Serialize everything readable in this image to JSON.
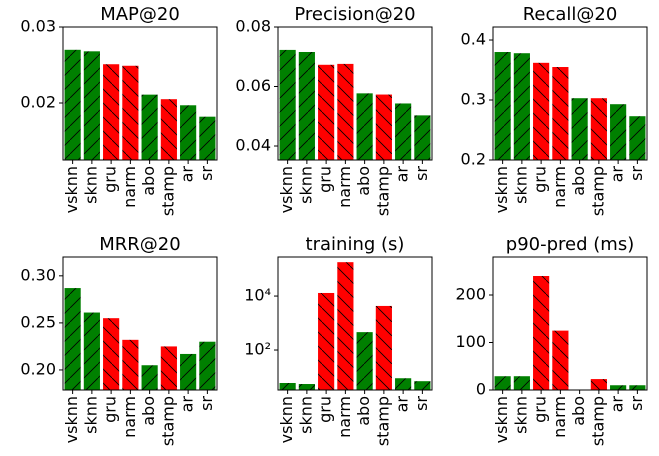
{
  "chart_data": [
    {
      "type": "bar",
      "title": "MAP@20",
      "categories": [
        "vsknn",
        "sknn",
        "gru",
        "narm",
        "abo",
        "stamp",
        "ar",
        "sr"
      ],
      "values": [
        0.027,
        0.0268,
        0.0251,
        0.0249,
        0.0211,
        0.0205,
        0.0197,
        0.0182
      ],
      "colors": [
        "#008000",
        "#008000",
        "#ff0000",
        "#ff0000",
        "#008000",
        "#ff0000",
        "#008000",
        "#008000"
      ],
      "ylim": [
        0.0125,
        0.03
      ],
      "yticks": [
        0.02,
        0.03
      ]
    },
    {
      "type": "bar",
      "title": "Precision@20",
      "categories": [
        "vsknn",
        "sknn",
        "gru",
        "narm",
        "abo",
        "stamp",
        "ar",
        "sr"
      ],
      "values": [
        0.0723,
        0.0716,
        0.0673,
        0.0676,
        0.0577,
        0.0573,
        0.0543,
        0.0503
      ],
      "colors": [
        "#008000",
        "#008000",
        "#ff0000",
        "#ff0000",
        "#008000",
        "#ff0000",
        "#008000",
        "#008000"
      ],
      "ylim": [
        0.0353,
        0.08
      ],
      "yticks": [
        0.04,
        0.06,
        0.08
      ]
    },
    {
      "type": "bar",
      "title": "Recall@20",
      "categories": [
        "vsknn",
        "sknn",
        "gru",
        "narm",
        "abo",
        "stamp",
        "ar",
        "sr"
      ],
      "values": [
        0.38,
        0.378,
        0.362,
        0.355,
        0.303,
        0.303,
        0.293,
        0.273
      ],
      "colors": [
        "#008000",
        "#008000",
        "#ff0000",
        "#ff0000",
        "#008000",
        "#ff0000",
        "#008000",
        "#008000"
      ],
      "ylim": [
        0.2,
        0.4217
      ],
      "yticks": [
        0.2,
        0.3,
        0.4
      ]
    },
    {
      "type": "bar",
      "title": "MRR@20",
      "categories": [
        "vsknn",
        "sknn",
        "gru",
        "narm",
        "abo",
        "stamp",
        "ar",
        "sr"
      ],
      "values": [
        0.287,
        0.261,
        0.255,
        0.232,
        0.205,
        0.225,
        0.217,
        0.23
      ],
      "colors": [
        "#008000",
        "#008000",
        "#ff0000",
        "#ff0000",
        "#008000",
        "#ff0000",
        "#008000",
        "#008000"
      ],
      "ylim": [
        0.1787,
        0.32
      ],
      "yticks": [
        {
          "value": 0.2,
          "label": "0.20"
        },
        {
          "value": 0.25,
          "label": "0.25"
        },
        {
          "value": 0.3,
          "label": "0.30"
        }
      ]
    },
    {
      "type": "bar",
      "title": "training (s)",
      "ylog": true,
      "categories": [
        "vsknn",
        "sknn",
        "gru",
        "narm",
        "abo",
        "stamp",
        "ar",
        "sr"
      ],
      "values": [
        6,
        5.5,
        13000,
        180000,
        460,
        4300,
        9,
        7
      ],
      "colors": [
        "#008000",
        "#008000",
        "#ff0000",
        "#ff0000",
        "#008000",
        "#ff0000",
        "#008000",
        "#008000"
      ],
      "ylim": [
        3.3,
        280000
      ],
      "yticks": [
        {
          "value": 100,
          "label": "10²"
        },
        {
          "value": 10000,
          "label": "10⁴"
        }
      ]
    },
    {
      "type": "bar",
      "title": "p90-pred (ms)",
      "categories": [
        "vsknn",
        "sknn",
        "gru",
        "narm",
        "abo",
        "stamp",
        "ar",
        "sr"
      ],
      "values": [
        29,
        29,
        240,
        125,
        1,
        23,
        10,
        10
      ],
      "colors": [
        "#008000",
        "#008000",
        "#ff0000",
        "#ff0000",
        "#008000",
        "#ff0000",
        "#008000",
        "#008000"
      ],
      "ylim": [
        0,
        280
      ],
      "yticks": [
        0,
        100,
        200
      ]
    }
  ]
}
